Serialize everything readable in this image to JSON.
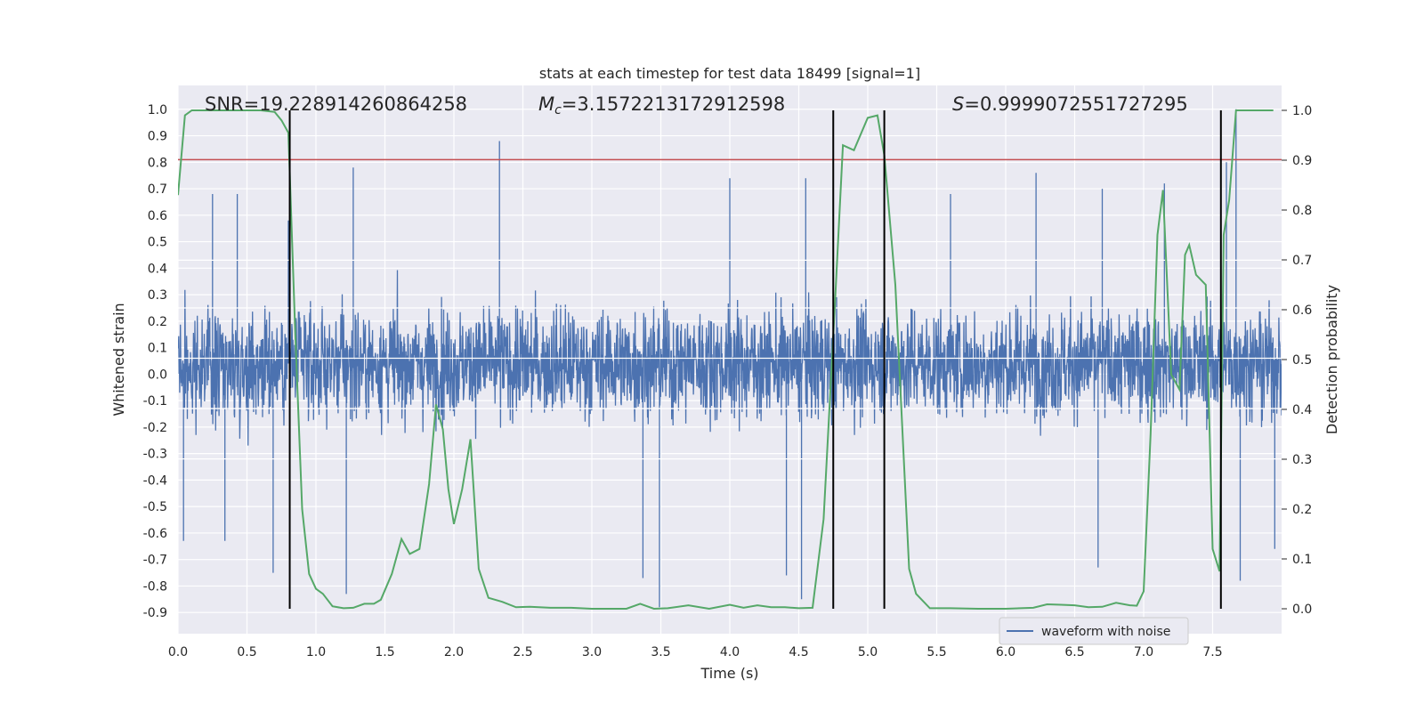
{
  "chart_data": {
    "type": "line",
    "title": "stats at each timestep for test data 18499 [signal=1]",
    "xlabel": "Time (s)",
    "ylabel_left": "Whitened strain",
    "ylabel_right": "Detection probability",
    "xlim": [
      0.0,
      8.0
    ],
    "ylim_left": [
      -0.98,
      1.09
    ],
    "ylim_right": [
      -0.05,
      1.05
    ],
    "x_ticks": [
      "0.0",
      "0.5",
      "1.0",
      "1.5",
      "2.0",
      "2.5",
      "3.0",
      "3.5",
      "4.0",
      "4.5",
      "5.0",
      "5.5",
      "6.0",
      "6.5",
      "7.0",
      "7.5"
    ],
    "x_tick_values": [
      0.0,
      0.5,
      1.0,
      1.5,
      2.0,
      2.5,
      3.0,
      3.5,
      4.0,
      4.5,
      5.0,
      5.5,
      6.0,
      6.5,
      7.0,
      7.5
    ],
    "y_ticks_left": [
      "1.0",
      "0.9",
      "0.8",
      "0.7",
      "0.6",
      "0.5",
      "0.4",
      "0.3",
      "0.2",
      "0.1",
      "0.0",
      "-0.1",
      "-0.2",
      "-0.3",
      "-0.4",
      "-0.5",
      "-0.6",
      "-0.7",
      "-0.8",
      "-0.9"
    ],
    "y_tick_values_left": [
      1.0,
      0.9,
      0.8,
      0.7,
      0.6,
      0.5,
      0.4,
      0.3,
      0.2,
      0.1,
      0.0,
      -0.1,
      -0.2,
      -0.3,
      -0.4,
      -0.5,
      -0.6,
      -0.7,
      -0.8,
      -0.9
    ],
    "y_ticks_right": [
      "1.0",
      "0.9",
      "0.8",
      "0.7",
      "0.6",
      "0.5",
      "0.4",
      "0.3",
      "0.2",
      "0.1",
      "0.0"
    ],
    "y_tick_values_right": [
      1.0,
      0.9,
      0.8,
      0.7,
      0.6,
      0.5,
      0.4,
      0.3,
      0.2,
      0.1,
      0.0
    ],
    "grid": true,
    "legend_position": "lower-right",
    "annotations": {
      "snr": "SNR=19.228914260864258",
      "mc_prefix": "M",
      "mc_sub": "c",
      "mc_value": "=3.1572213172912598",
      "s_prefix": "S",
      "s_value": "=0.9999072551727295"
    },
    "series": [
      {
        "name": "waveform with noise",
        "color": "#4c72b0",
        "axis": "left",
        "description_of_envelope": "dense noise, amplitude mostly within -0.45..0.55",
        "peaks": [
          {
            "x": 0.25,
            "y": 0.68
          },
          {
            "x": 0.43,
            "y": 0.68
          },
          {
            "x": 0.8,
            "y": 0.58
          },
          {
            "x": 1.27,
            "y": 0.78
          },
          {
            "x": 2.33,
            "y": 0.88
          },
          {
            "x": 4.0,
            "y": 0.74
          },
          {
            "x": 4.55,
            "y": 0.74
          },
          {
            "x": 5.6,
            "y": 0.68
          },
          {
            "x": 6.22,
            "y": 0.76
          },
          {
            "x": 6.7,
            "y": 0.7
          },
          {
            "x": 7.15,
            "y": 0.72
          },
          {
            "x": 7.6,
            "y": 0.8
          },
          {
            "x": 7.67,
            "y": 1.0
          }
        ],
        "troughs": [
          {
            "x": 0.04,
            "y": -0.63
          },
          {
            "x": 0.34,
            "y": -0.63
          },
          {
            "x": 0.69,
            "y": -0.75
          },
          {
            "x": 1.22,
            "y": -0.83
          },
          {
            "x": 3.37,
            "y": -0.77
          },
          {
            "x": 3.49,
            "y": -0.88
          },
          {
            "x": 4.52,
            "y": -0.85
          },
          {
            "x": 4.41,
            "y": -0.76
          },
          {
            "x": 6.67,
            "y": -0.73
          },
          {
            "x": 7.7,
            "y": -0.78
          },
          {
            "x": 7.95,
            "y": -0.66
          }
        ]
      },
      {
        "name": "",
        "color": "#55a868",
        "axis": "right",
        "x": [
          0.0,
          0.05,
          0.1,
          0.2,
          0.3,
          0.4,
          0.5,
          0.6,
          0.7,
          0.75,
          0.8,
          0.85,
          0.9,
          0.95,
          1.0,
          1.05,
          1.12,
          1.2,
          1.27,
          1.35,
          1.42,
          1.47,
          1.55,
          1.62,
          1.68,
          1.75,
          1.82,
          1.87,
          1.92,
          1.96,
          2.0,
          2.06,
          2.12,
          2.18,
          2.25,
          2.35,
          2.45,
          2.55,
          2.7,
          2.85,
          3.0,
          3.15,
          3.25,
          3.35,
          3.45,
          3.55,
          3.7,
          3.85,
          4.0,
          4.1,
          4.2,
          4.3,
          4.4,
          4.5,
          4.6,
          4.68,
          4.76,
          4.82,
          4.9,
          5.0,
          5.07,
          5.12,
          5.2,
          5.3,
          5.35,
          5.45,
          5.6,
          5.8,
          6.0,
          6.2,
          6.3,
          6.4,
          6.5,
          6.6,
          6.7,
          6.8,
          6.9,
          6.95,
          7.0,
          7.05,
          7.1,
          7.14,
          7.2,
          7.26,
          7.3,
          7.33,
          7.38,
          7.45,
          7.5,
          7.55,
          7.58,
          7.62,
          7.67,
          7.75,
          7.8,
          7.94
        ],
        "y": [
          0.83,
          0.99,
          1.0,
          1.0,
          1.0,
          1.0,
          1.0,
          1.0,
          0.997,
          0.98,
          0.955,
          0.55,
          0.2,
          0.07,
          0.04,
          0.03,
          0.005,
          0.001,
          0.002,
          0.01,
          0.01,
          0.018,
          0.07,
          0.14,
          0.11,
          0.12,
          0.25,
          0.41,
          0.36,
          0.24,
          0.17,
          0.24,
          0.34,
          0.08,
          0.022,
          0.014,
          0.003,
          0.004,
          0.002,
          0.002,
          0.0,
          0.0,
          0.0,
          0.01,
          0.0,
          0.001,
          0.007,
          0.0,
          0.008,
          0.002,
          0.007,
          0.003,
          0.003,
          0.001,
          0.002,
          0.18,
          0.6,
          0.93,
          0.92,
          0.985,
          0.99,
          0.91,
          0.65,
          0.08,
          0.03,
          0.001,
          0.001,
          0.0,
          0.0,
          0.002,
          0.009,
          0.008,
          0.007,
          0.003,
          0.004,
          0.012,
          0.007,
          0.006,
          0.035,
          0.35,
          0.75,
          0.84,
          0.47,
          0.44,
          0.71,
          0.73,
          0.67,
          0.65,
          0.12,
          0.075,
          0.75,
          0.82,
          1.0,
          1.0,
          1.0,
          1.0
        ]
      }
    ],
    "threshold_line": {
      "axis": "left",
      "y": 0.81,
      "color": "#c44e52"
    },
    "vertical_lines_x": [
      0.81,
      4.75,
      5.12,
      7.56
    ]
  }
}
